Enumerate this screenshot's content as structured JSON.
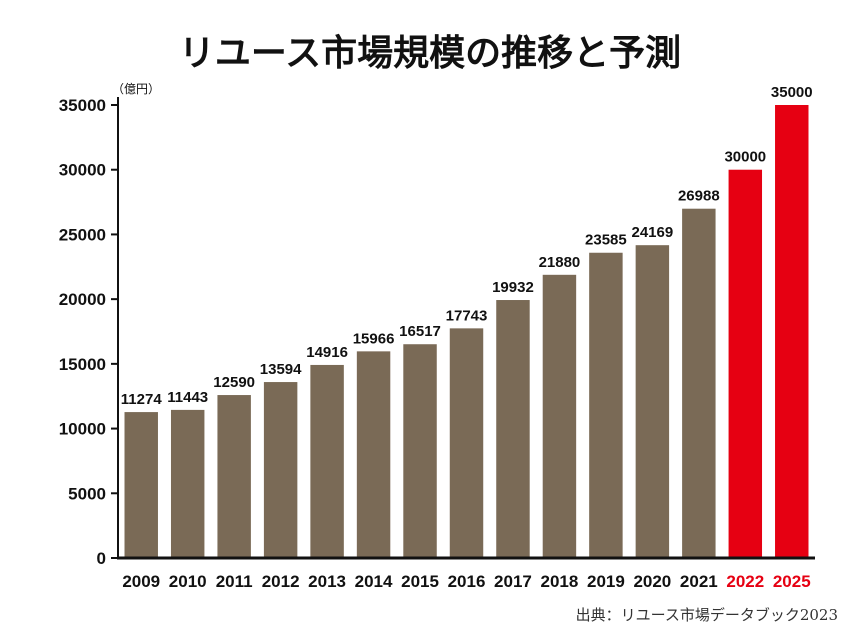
{
  "chart_data": {
    "type": "bar",
    "title": "リユース市場規模の推移と予測",
    "unit_label": "（億円）",
    "categories": [
      "2009",
      "2010",
      "2011",
      "2012",
      "2013",
      "2014",
      "2015",
      "2016",
      "2017",
      "2018",
      "2019",
      "2020",
      "2021",
      "2022",
      "2025"
    ],
    "values": [
      11274,
      11443,
      12590,
      13594,
      14916,
      15966,
      16517,
      17743,
      19932,
      21880,
      23585,
      24169,
      26988,
      30000,
      35000
    ],
    "highlight_categories": [
      "2022",
      "2025"
    ],
    "ylim": [
      0,
      35000
    ],
    "yticks": [
      0,
      5000,
      10000,
      15000,
      20000,
      25000,
      30000,
      35000
    ],
    "grid": false,
    "legend": "none",
    "colors": {
      "bar": "#7a6a56",
      "highlight": "#e60012",
      "text": "#111111",
      "highlight_text": "#e60012",
      "axis": "#111111"
    },
    "source": "出典：リユース市場データブック2023"
  }
}
